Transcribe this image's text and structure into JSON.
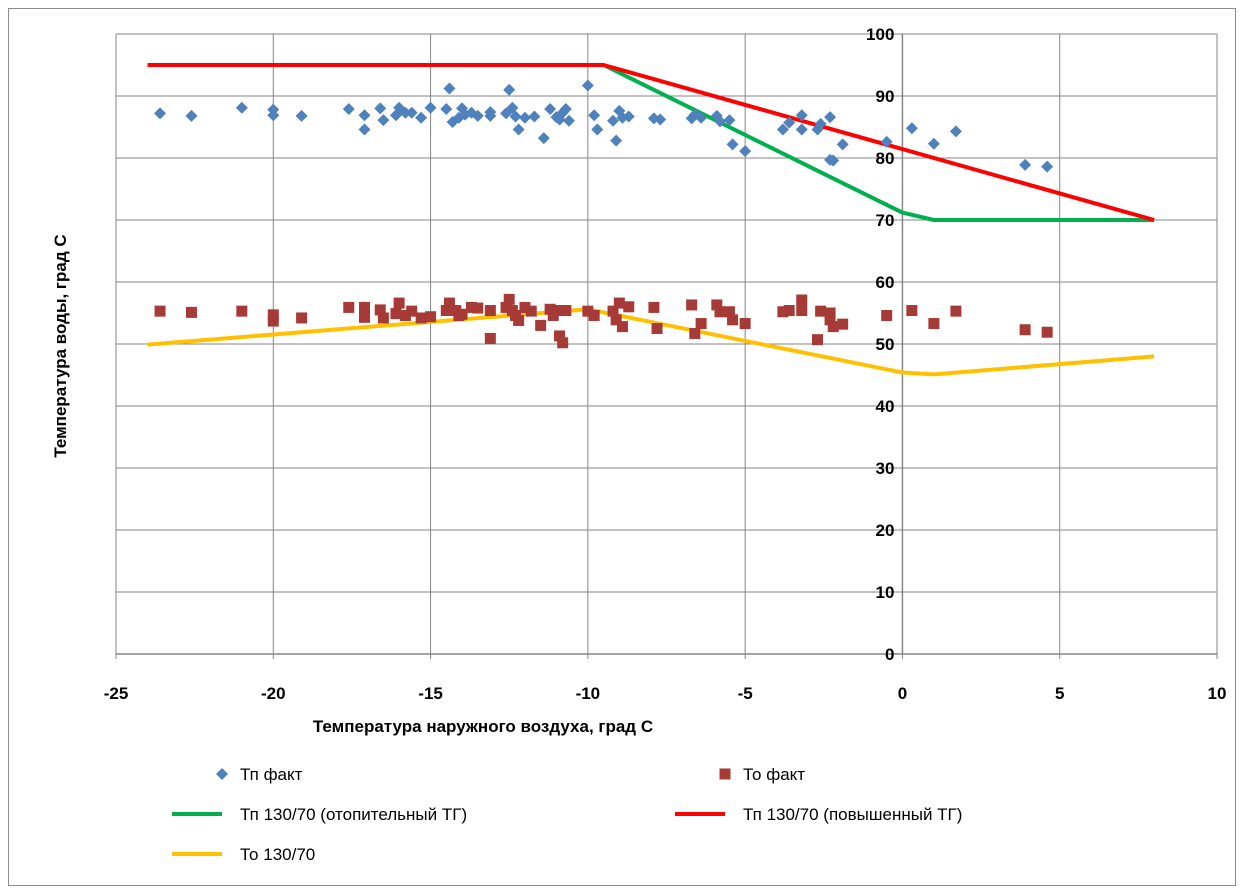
{
  "chart_data": {
    "type": "scatter",
    "xlabel": "Температура наружного воздуха, град С",
    "ylabel": "Температура воды, град С",
    "xlim": [
      -25,
      10
    ],
    "ylim": [
      0,
      100
    ],
    "x_ticks": [
      -25,
      -20,
      -15,
      -10,
      -5,
      0,
      5,
      10
    ],
    "y_ticks": [
      0,
      10,
      20,
      30,
      40,
      50,
      60,
      70,
      80,
      90,
      100
    ],
    "y_axis_crosses_at_x": 0,
    "grid": true,
    "legend_position": "bottom",
    "series": [
      {
        "name": "Тп факт",
        "kind": "scatter",
        "marker": "diamond",
        "color": "#4f81bd",
        "points": [
          [
            -23.6,
            87.2
          ],
          [
            -22.6,
            86.8
          ],
          [
            -21.0,
            88.1
          ],
          [
            -20.0,
            87.8
          ],
          [
            -20.0,
            86.9
          ],
          [
            -19.1,
            86.8
          ],
          [
            -17.6,
            87.9
          ],
          [
            -17.1,
            84.6
          ],
          [
            -17.1,
            86.9
          ],
          [
            -16.6,
            88.0
          ],
          [
            -16.5,
            86.1
          ],
          [
            -16.1,
            86.9
          ],
          [
            -16.0,
            88.1
          ],
          [
            -15.8,
            87.3
          ],
          [
            -15.6,
            87.3
          ],
          [
            -15.3,
            86.5
          ],
          [
            -15.0,
            88.1
          ],
          [
            -14.5,
            87.9
          ],
          [
            -14.4,
            91.2
          ],
          [
            -14.3,
            85.8
          ],
          [
            -14.1,
            86.5
          ],
          [
            -14.0,
            88.0
          ],
          [
            -13.9,
            87.0
          ],
          [
            -13.7,
            87.3
          ],
          [
            -13.5,
            86.8
          ],
          [
            -13.1,
            87.4
          ],
          [
            -13.1,
            86.8
          ],
          [
            -12.6,
            87.2
          ],
          [
            -12.5,
            91.0
          ],
          [
            -12.4,
            88.1
          ],
          [
            -12.3,
            86.7
          ],
          [
            -12.2,
            84.6
          ],
          [
            -12.0,
            86.5
          ],
          [
            -11.7,
            86.7
          ],
          [
            -11.4,
            83.2
          ],
          [
            -11.2,
            87.9
          ],
          [
            -11.0,
            86.6
          ],
          [
            -10.9,
            86.2
          ],
          [
            -10.8,
            87.3
          ],
          [
            -10.7,
            87.9
          ],
          [
            -10.6,
            86.0
          ],
          [
            -10.0,
            91.7
          ],
          [
            -9.8,
            86.9
          ],
          [
            -9.7,
            84.6
          ],
          [
            -9.2,
            86.0
          ],
          [
            -9.1,
            82.8
          ],
          [
            -9.0,
            87.6
          ],
          [
            -8.9,
            86.5
          ],
          [
            -8.7,
            86.7
          ],
          [
            -7.9,
            86.4
          ],
          [
            -7.7,
            86.2
          ],
          [
            -6.7,
            86.4
          ],
          [
            -6.6,
            87.0
          ],
          [
            -6.4,
            86.5
          ],
          [
            -5.9,
            86.8
          ],
          [
            -5.8,
            85.9
          ],
          [
            -5.5,
            86.1
          ],
          [
            -5.4,
            82.2
          ],
          [
            -5.0,
            81.1
          ],
          [
            -3.8,
            84.6
          ],
          [
            -3.6,
            85.7
          ],
          [
            -3.2,
            86.9
          ],
          [
            -3.2,
            84.6
          ],
          [
            -2.7,
            84.6
          ],
          [
            -2.6,
            85.5
          ],
          [
            -2.3,
            86.6
          ],
          [
            -2.3,
            79.7
          ],
          [
            -2.2,
            79.6
          ],
          [
            -1.9,
            82.2
          ],
          [
            -0.5,
            82.6
          ],
          [
            0.3,
            84.8
          ],
          [
            1.0,
            82.3
          ],
          [
            1.7,
            84.3
          ],
          [
            3.9,
            78.9
          ],
          [
            4.6,
            78.6
          ]
        ]
      },
      {
        "name": "То факт",
        "kind": "scatter",
        "marker": "square",
        "color": "#a63a36",
        "points": [
          [
            -23.6,
            55.3
          ],
          [
            -22.6,
            55.1
          ],
          [
            -21.0,
            55.3
          ],
          [
            -20.0,
            54.7
          ],
          [
            -20.0,
            53.7
          ],
          [
            -19.1,
            54.2
          ],
          [
            -17.6,
            55.9
          ],
          [
            -17.1,
            54.3
          ],
          [
            -17.1,
            55.9
          ],
          [
            -16.6,
            55.5
          ],
          [
            -16.5,
            54.2
          ],
          [
            -16.1,
            54.9
          ],
          [
            -16.0,
            56.6
          ],
          [
            -15.8,
            54.6
          ],
          [
            -15.6,
            55.3
          ],
          [
            -15.3,
            54.2
          ],
          [
            -15.0,
            54.4
          ],
          [
            -14.5,
            55.4
          ],
          [
            -14.4,
            56.6
          ],
          [
            -14.2,
            55.4
          ],
          [
            -14.1,
            54.6
          ],
          [
            -14.0,
            54.8
          ],
          [
            -13.7,
            55.9
          ],
          [
            -13.5,
            55.8
          ],
          [
            -13.1,
            55.4
          ],
          [
            -13.1,
            50.9
          ],
          [
            -12.6,
            55.9
          ],
          [
            -12.5,
            57.2
          ],
          [
            -12.4,
            55.4
          ],
          [
            -12.3,
            54.6
          ],
          [
            -12.2,
            53.8
          ],
          [
            -12.0,
            55.9
          ],
          [
            -11.8,
            55.3
          ],
          [
            -11.5,
            53.0
          ],
          [
            -11.2,
            55.6
          ],
          [
            -11.1,
            54.6
          ],
          [
            -11.0,
            55.4
          ],
          [
            -10.9,
            51.3
          ],
          [
            -10.8,
            50.2
          ],
          [
            -10.7,
            55.4
          ],
          [
            -10.0,
            55.3
          ],
          [
            -9.8,
            54.6
          ],
          [
            -9.2,
            55.3
          ],
          [
            -9.1,
            53.9
          ],
          [
            -9.0,
            56.6
          ],
          [
            -8.9,
            52.8
          ],
          [
            -8.7,
            56.0
          ],
          [
            -7.9,
            55.9
          ],
          [
            -7.8,
            52.5
          ],
          [
            -6.7,
            56.3
          ],
          [
            -6.6,
            51.7
          ],
          [
            -6.4,
            53.3
          ],
          [
            -5.9,
            56.3
          ],
          [
            -5.8,
            55.2
          ],
          [
            -5.5,
            55.2
          ],
          [
            -5.4,
            53.9
          ],
          [
            -5.0,
            53.3
          ],
          [
            -3.8,
            55.2
          ],
          [
            -3.6,
            55.4
          ],
          [
            -3.2,
            57.1
          ],
          [
            -3.2,
            55.4
          ],
          [
            -2.7,
            50.7
          ],
          [
            -2.6,
            55.3
          ],
          [
            -2.3,
            55.0
          ],
          [
            -2.3,
            53.9
          ],
          [
            -2.2,
            52.8
          ],
          [
            -1.9,
            53.2
          ],
          [
            -0.5,
            54.6
          ],
          [
            0.3,
            55.4
          ],
          [
            1.0,
            53.3
          ],
          [
            1.7,
            55.3
          ],
          [
            3.9,
            52.3
          ],
          [
            4.6,
            51.9
          ]
        ]
      },
      {
        "name": "Тп 130/70 (отопительный ТГ)",
        "kind": "line",
        "color": "#00b050",
        "points": [
          [
            -9.5,
            95.0
          ],
          [
            0.0,
            71.2
          ],
          [
            1.0,
            70.0
          ],
          [
            8.0,
            70.0
          ]
        ]
      },
      {
        "name": "Тп 130/70 (повышенный ТГ)",
        "kind": "line",
        "color": "#ff0000",
        "points": [
          [
            -24.0,
            95.0
          ],
          [
            -9.5,
            95.0
          ],
          [
            8.0,
            70.0
          ]
        ]
      },
      {
        "name": "То 130/70",
        "kind": "line",
        "color": "#ffc000",
        "points": [
          [
            -24.0,
            49.9
          ],
          [
            -10.0,
            55.6
          ],
          [
            0.0,
            45.4
          ],
          [
            1.0,
            45.1
          ],
          [
            8.0,
            48.0
          ]
        ]
      }
    ]
  }
}
